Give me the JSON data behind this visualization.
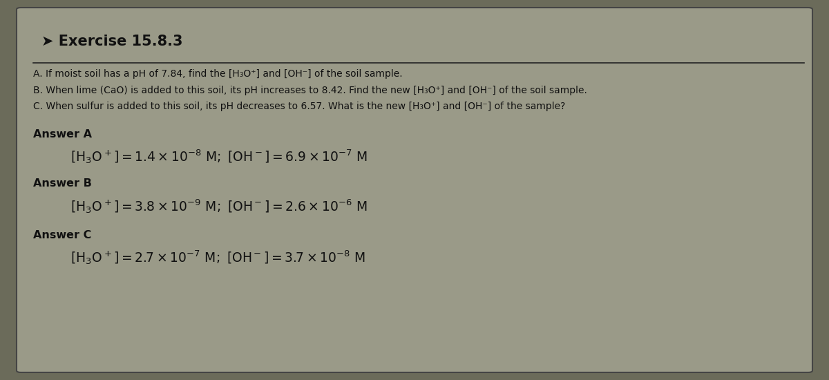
{
  "title": "➤ Exercise 15.8.3",
  "bg_outer": "#6b6b5a",
  "bg_card": "#9a9a88",
  "line_color": "#222222",
  "text_color": "#111111",
  "fs_title": 15,
  "fs_question": 10.0,
  "fs_answer_label": 11.5,
  "fs_answer": 13.5,
  "question_A": "A. If moist soil has a pH of 7.84, find the [H₃O⁺] and [OH⁻] of the soil sample.",
  "question_B": "B. When lime (CaO) is added to this soil, its pH increases to 8.42. Find the new [H₃O⁺] and [OH⁻] of the soil sample.",
  "question_C": "C. When sulfur is added to this soil, its pH decreases to 6.57. What is the new [H₃O⁺] and [OH⁻] of the sample?",
  "ans_A_label": "Answer A",
  "ans_B_label": "Answer B",
  "ans_C_label": "Answer C",
  "ans_A": "$[\\mathrm{H_3O^+}] = 1.4 \\times 10^{-8}\\ \\mathrm{M};\\ [\\mathrm{OH^-}] = 6.9 \\times 10^{-7}\\ \\mathrm{M}$",
  "ans_B": "$[\\mathrm{H_3O^+}] = 3.8 \\times 10^{-9}\\ \\mathrm{M};\\ [\\mathrm{OH^-}] = 2.6 \\times 10^{-6}\\ \\mathrm{M}$",
  "ans_C": "$[\\mathrm{H_3O^+}] = 2.7 \\times 10^{-7}\\ \\mathrm{M};\\ [\\mathrm{OH^-}] = 3.7 \\times 10^{-8}\\ \\mathrm{M}$"
}
